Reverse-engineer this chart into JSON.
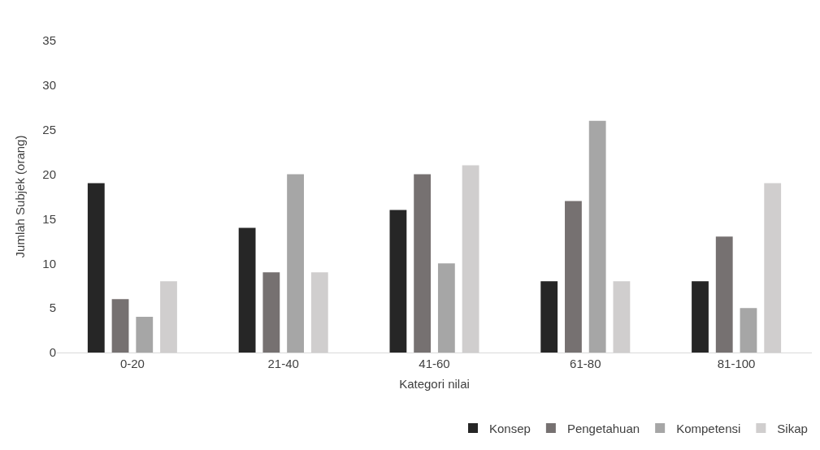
{
  "chart_data": {
    "type": "bar",
    "xlabel": "Kategori nilai",
    "ylabel": "Jumlah Subjek (orang)",
    "categories": [
      "0-20",
      "21-40",
      "41-60",
      "61-80",
      "81-100"
    ],
    "series": [
      {
        "name": "Konsep",
        "color": "#262626",
        "values": [
          19,
          14,
          16,
          8,
          8
        ]
      },
      {
        "name": "Pengetahuan",
        "color": "#767171",
        "values": [
          6,
          9,
          20,
          17,
          13
        ]
      },
      {
        "name": "Kompetensi",
        "color": "#a6a6a6",
        "values": [
          4,
          20,
          10,
          26,
          5
        ]
      },
      {
        "name": "Sikap",
        "color": "#d0cece",
        "values": [
          8,
          9,
          21,
          8,
          19
        ]
      }
    ],
    "ylim": [
      0,
      35
    ],
    "yticks": [
      0,
      5,
      10,
      15,
      20,
      25,
      30,
      35
    ],
    "grid": false,
    "legend": "bottom right"
  }
}
